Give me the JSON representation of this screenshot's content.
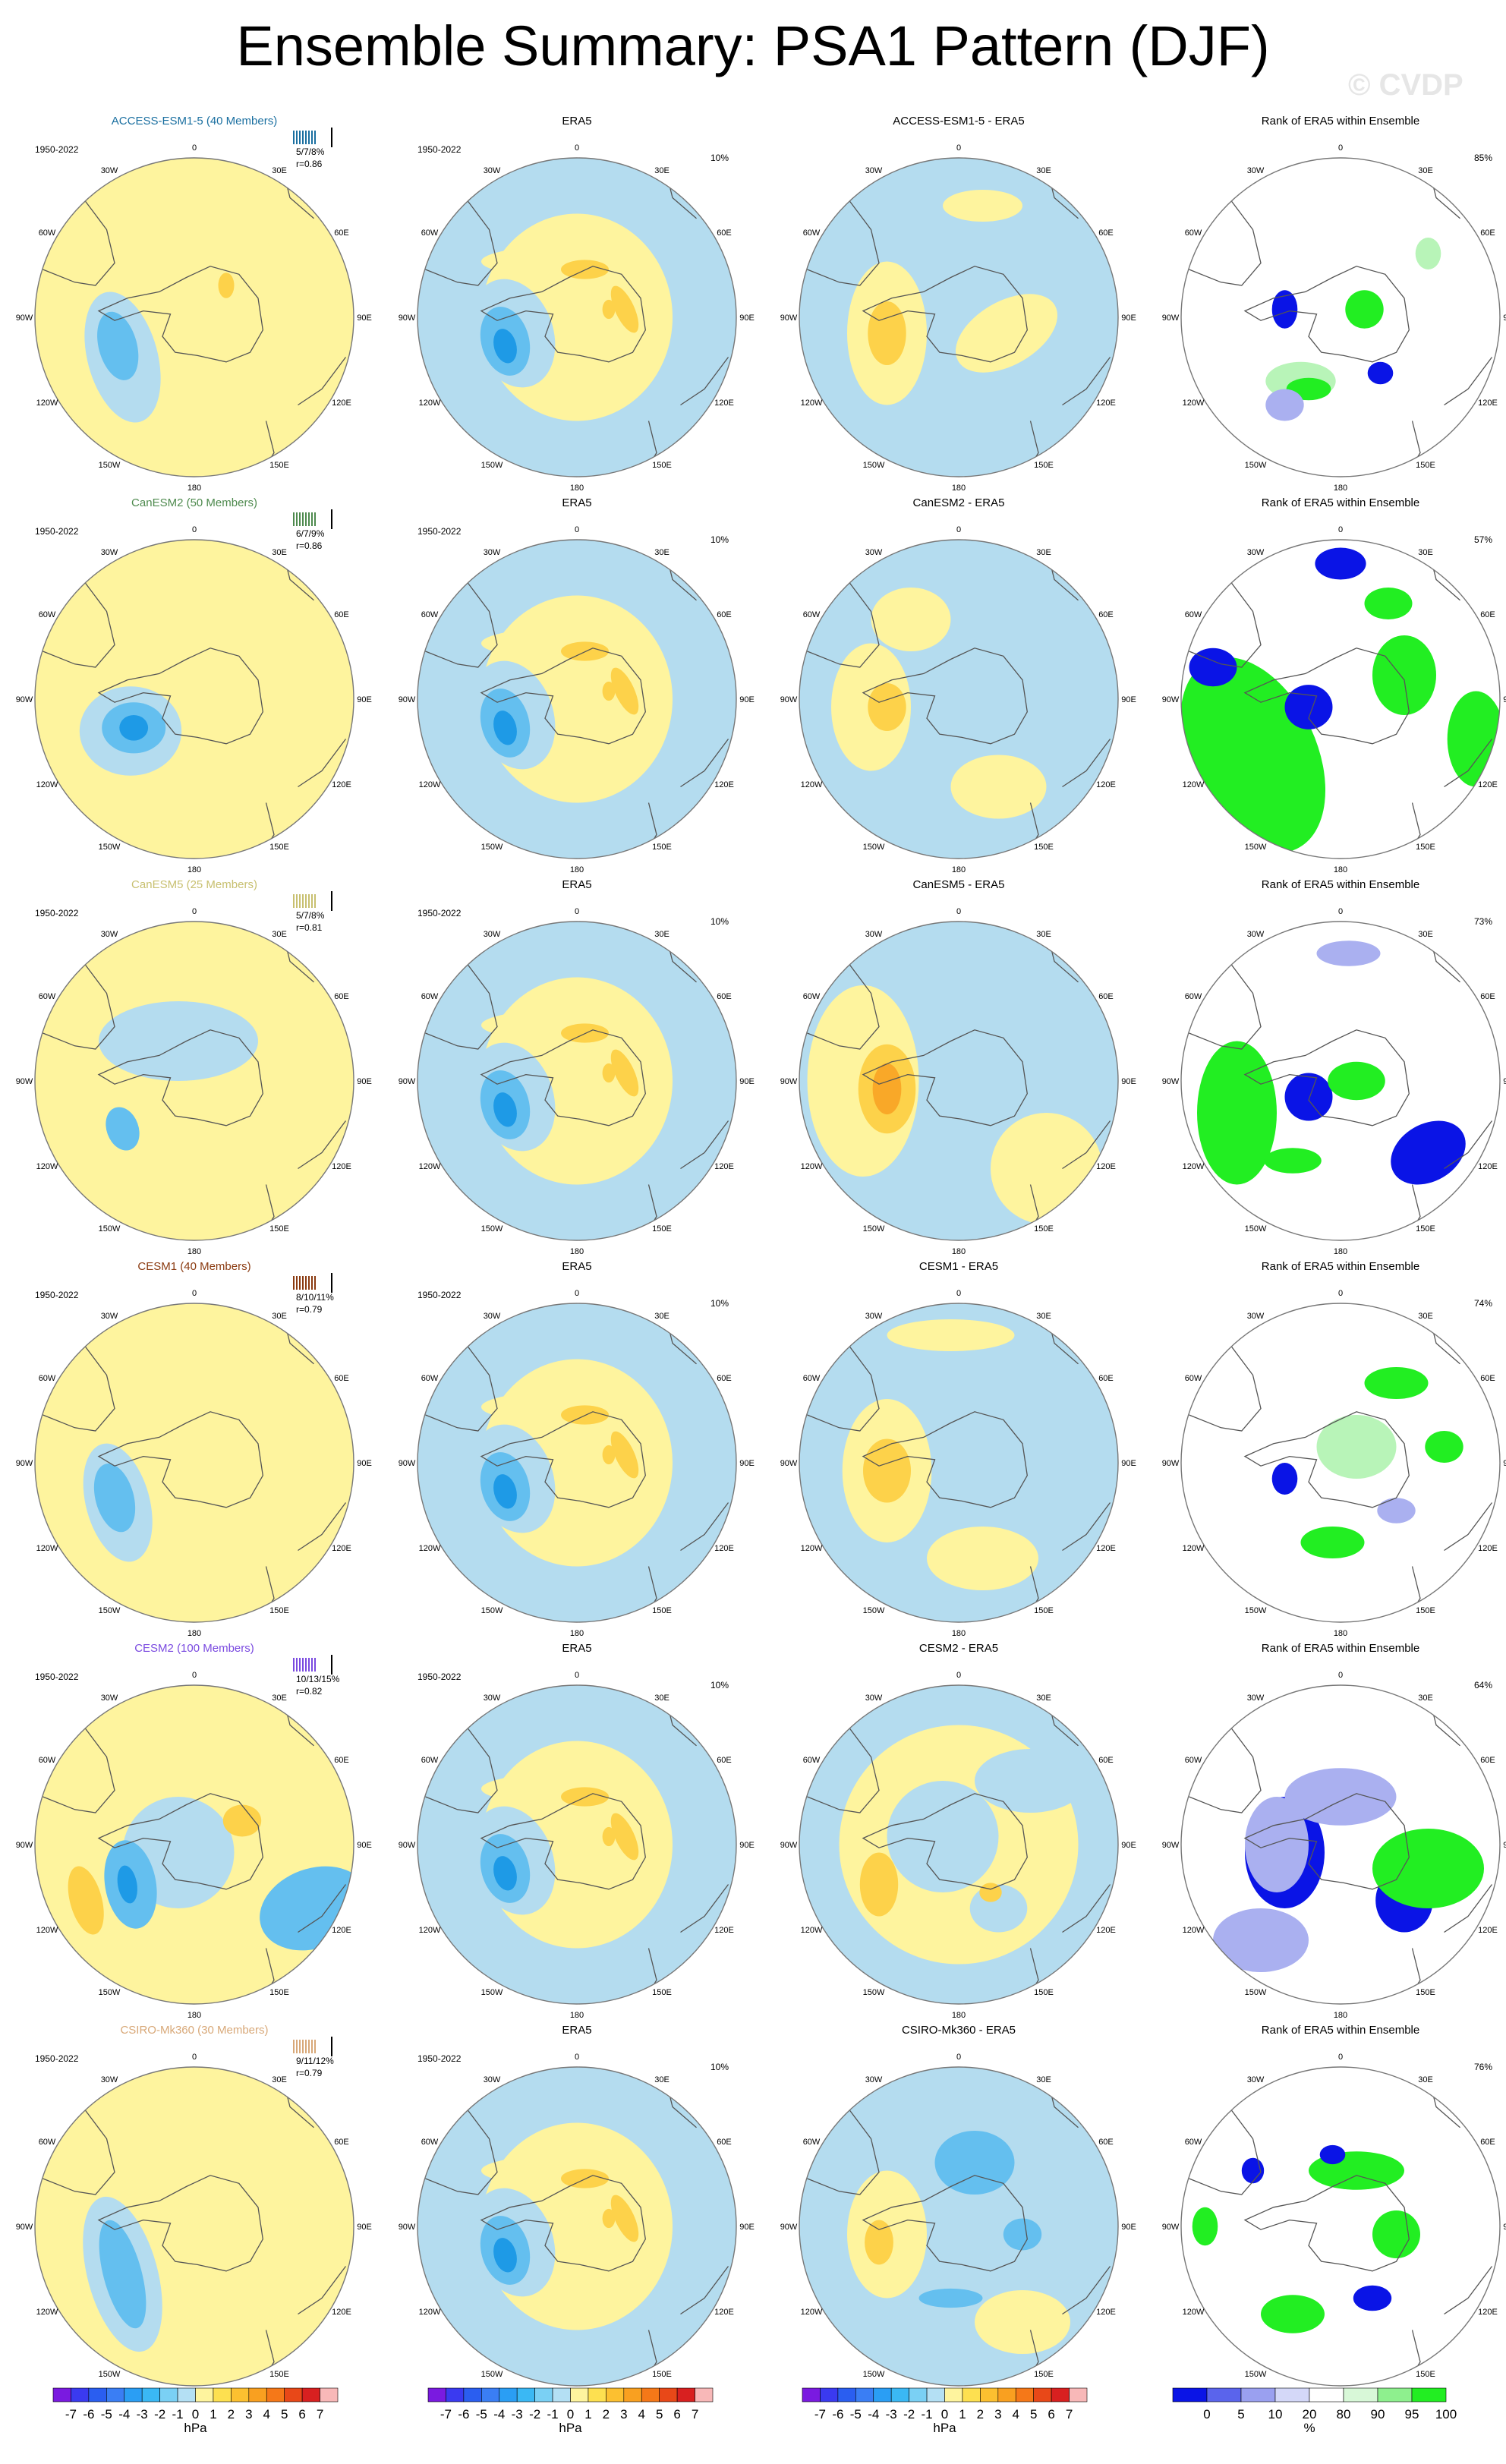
{
  "title": "Ensemble Summary: PSA1 Pattern (DJF)",
  "watermark": "© CVDP",
  "colors": {
    "yellow": "#fef49e",
    "blue": "#b4dcef",
    "yellow_mid": "#fdd24a",
    "orange": "#f9a828",
    "blue_mid": "#64bfef",
    "blue_deep": "#1e9ae6",
    "green": "#22ee22",
    "green_light": "#b8f4b8",
    "rank_blue": "#0a14e6",
    "rank_blue_light": "#aab0f0"
  },
  "lon_labels": [
    "0",
    "30E",
    "60E",
    "90E",
    "120E",
    "150E",
    "180",
    "150W",
    "120W",
    "90W",
    "60W",
    "30W"
  ],
  "era5_title": "ERA5",
  "rank_title": "Rank of ERA5 within Ensemble",
  "years": "1950-2022",
  "era5_pct": "10%",
  "rows": [
    {
      "model": "ACCESS-ESM1-5 (40 Members)",
      "color": "#1a6fa0",
      "stats": "5/7/8%",
      "r": "r=0.86",
      "diff": "ACCESS-ESM1-5 - ERA5",
      "rank_pct": "85%"
    },
    {
      "model": "CanESM2 (50 Members)",
      "color": "#4e8a4e",
      "stats": "6/7/9%",
      "r": "r=0.86",
      "diff": "CanESM2 - ERA5",
      "rank_pct": "57%"
    },
    {
      "model": "CanESM5 (25 Members)",
      "color": "#c8c070",
      "stats": "5/7/8%",
      "r": "r=0.81",
      "diff": "CanESM5 - ERA5",
      "rank_pct": "73%"
    },
    {
      "model": "CESM1 (40 Members)",
      "color": "#8a3a10",
      "stats": "8/10/11%",
      "r": "r=0.79",
      "diff": "CESM1 - ERA5",
      "rank_pct": "74%"
    },
    {
      "model": "CESM2 (100 Members)",
      "color": "#7a4ae0",
      "stats": "10/13/15%",
      "r": "r=0.82",
      "diff": "CESM2 - ERA5",
      "rank_pct": "64%"
    },
    {
      "model": "CSIRO-Mk360 (30 Members)",
      "color": "#d8a878",
      "stats": "9/11/12%",
      "r": "r=0.79",
      "diff": "CSIRO-Mk360 - ERA5",
      "rank_pct": "76%"
    }
  ],
  "colorbar_hpa": {
    "labels": [
      "-7",
      "-6",
      "-5",
      "-4",
      "-3",
      "-2",
      "-1",
      "0",
      "1",
      "2",
      "3",
      "4",
      "5",
      "6",
      "7"
    ],
    "unit": "hPa",
    "colors": [
      "#7a1ae0",
      "#3a3af0",
      "#2a5ef0",
      "#3a7ef4",
      "#2a9ef4",
      "#3ab8f4",
      "#7ad0f4",
      "#b4e0f4",
      "#fef49e",
      "#fde050",
      "#fcc030",
      "#f9a020",
      "#f57818",
      "#e84818",
      "#d82020",
      "#f8b8b8"
    ]
  },
  "colorbar_rank": {
    "labels": [
      "0",
      "5",
      "10",
      "20",
      "80",
      "90",
      "95",
      "100"
    ],
    "unit": "%",
    "colors": [
      "#0a14e6",
      "#5a64ec",
      "#9aa0f0",
      "#d4d8f8",
      "#ffffff",
      "#d8f8d8",
      "#8ef08e",
      "#22ee22"
    ]
  }
}
